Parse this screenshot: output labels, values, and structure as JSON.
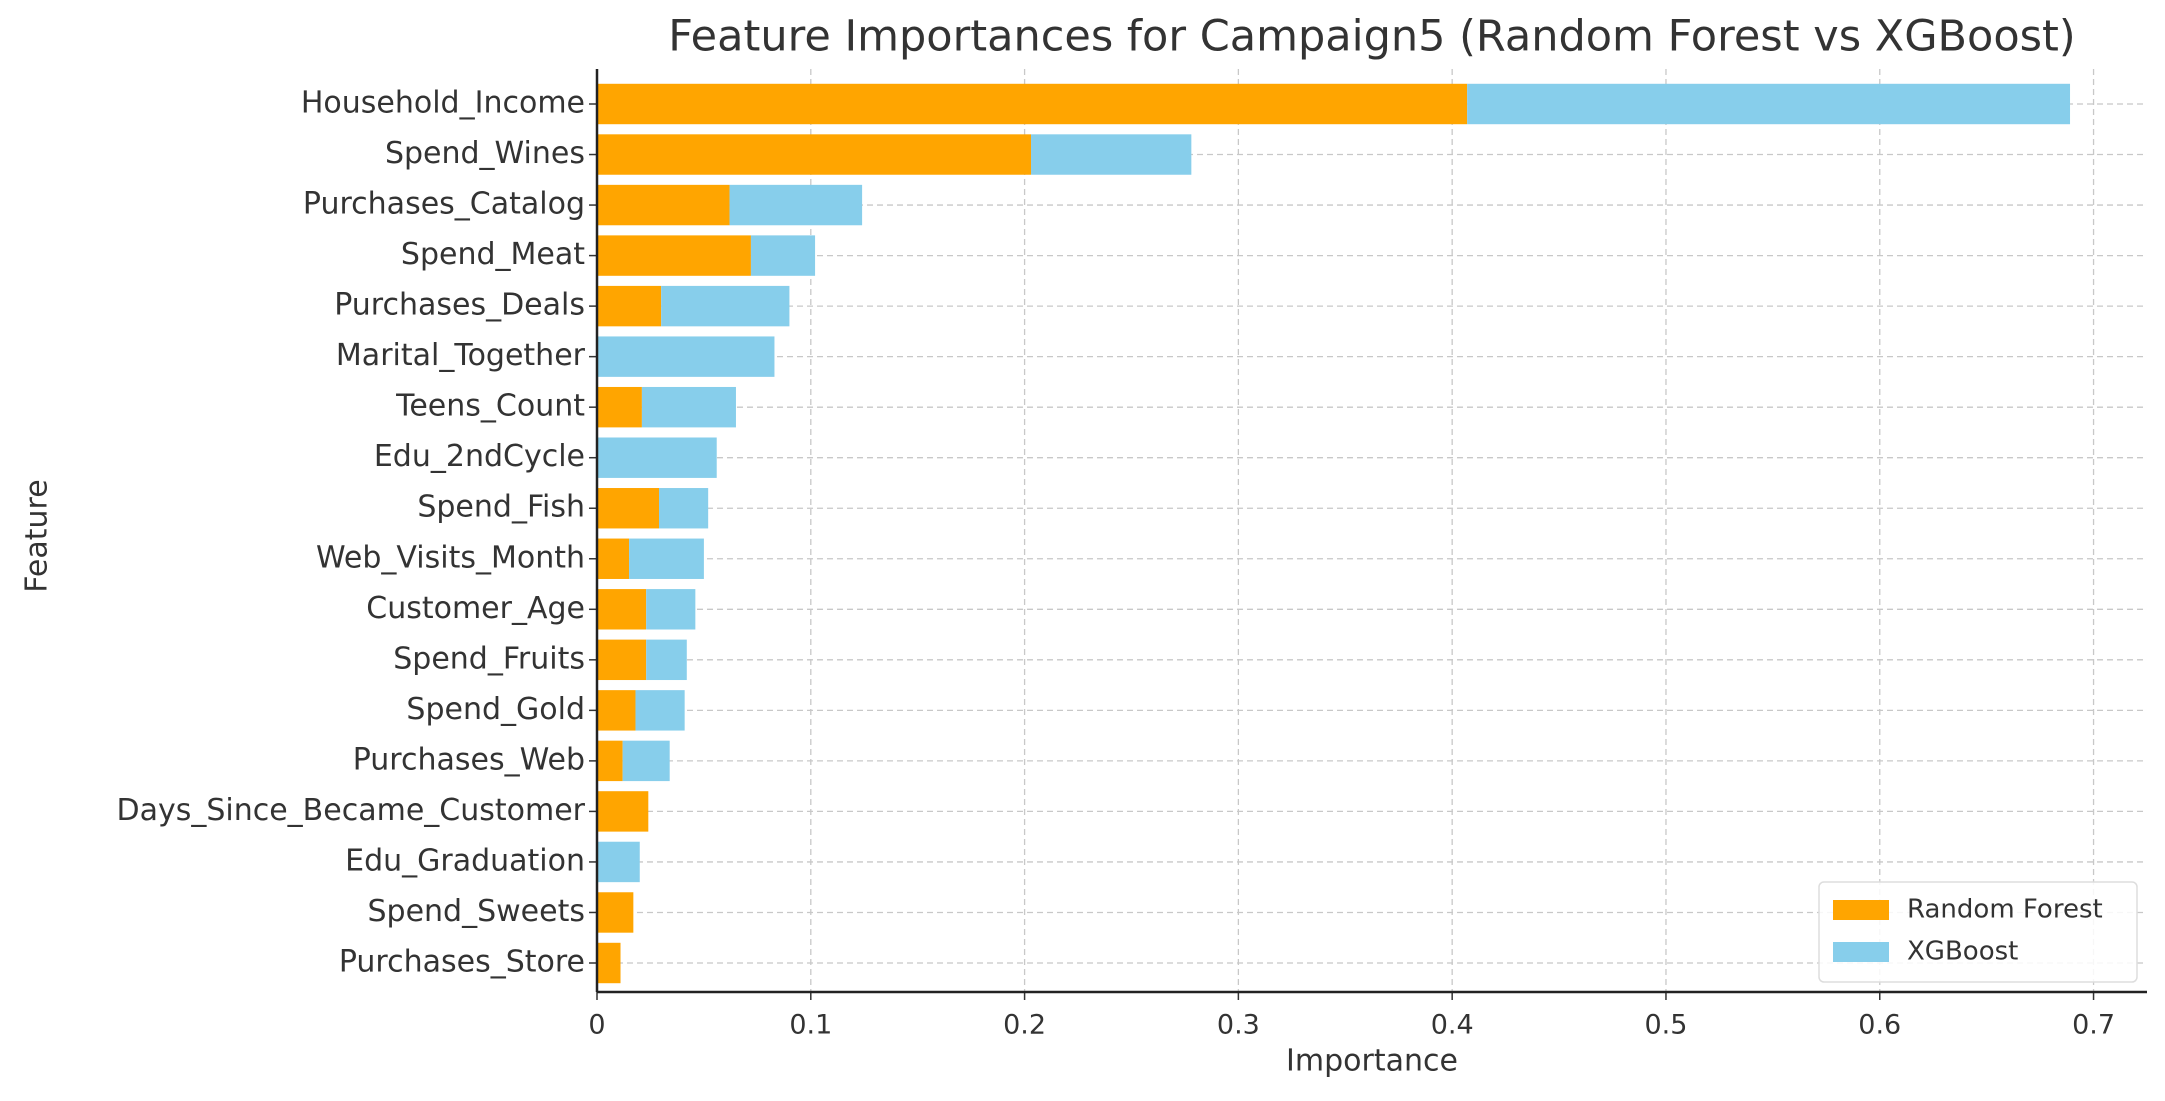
{
  "chart_data": {
    "type": "bar",
    "orientation": "horizontal",
    "stacked": true,
    "title": "Feature Importances for Campaign5 (Random Forest vs XGBoost)",
    "x_label": "Importance",
    "y_label": "Feature",
    "categories": [
      "Household_Income",
      "Spend_Wines",
      "Purchases_Catalog",
      "Spend_Meat",
      "Purchases_Deals",
      "Marital_Together",
      "Teens_Count",
      "Edu_2ndCycle",
      "Spend_Fish",
      "Web_Visits_Month",
      "Customer_Age",
      "Spend_Fruits",
      "Spend_Gold",
      "Purchases_Web",
      "Days_Since_Became_Customer",
      "Edu_Graduation",
      "Spend_Sweets",
      "Purchases_Store"
    ],
    "series": [
      {
        "name": "Random Forest",
        "color": "#FFA500",
        "values": [
          0.407,
          0.203,
          0.062,
          0.072,
          0.03,
          0,
          0.021,
          0,
          0.029,
          0.015,
          0.023,
          0.023,
          0.018,
          0.012,
          0.024,
          0,
          0.017,
          0.011
        ]
      },
      {
        "name": "XGBoost",
        "color": "#87CEEB",
        "values": [
          0.282,
          0.075,
          0.062,
          0.03,
          0.06,
          0.083,
          0.044,
          0.056,
          0.023,
          0.035,
          0.023,
          0.019,
          0.023,
          0.022,
          0,
          0.02,
          0,
          0
        ]
      }
    ],
    "xlim": [
      0,
      0.725
    ],
    "xticks": [
      0.0,
      0.1,
      0.2,
      0.3,
      0.4,
      0.5,
      0.6,
      0.7
    ],
    "grid": true,
    "legend": "lower right"
  }
}
